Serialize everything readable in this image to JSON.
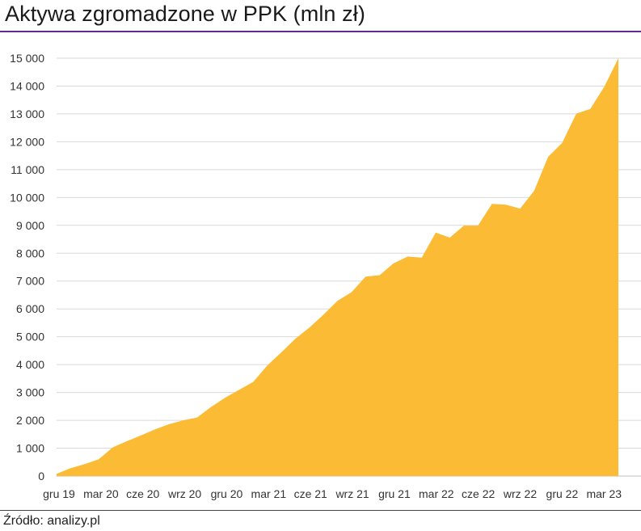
{
  "header": {
    "title": "Aktywa zgromadzone w PPK (mln zł)"
  },
  "footer": {
    "source": "Źródło: analizy.pl"
  },
  "colors": {
    "fill": "#fbbb35",
    "accent_rule": "#5b2d8e",
    "grid": "#d9d9d9"
  },
  "chart_data": {
    "type": "area",
    "title": "Aktywa zgromadzone w PPK (mln zł)",
    "xlabel": "",
    "ylabel": "",
    "ylim": [
      0,
      15000
    ],
    "yticks": [
      0,
      1000,
      2000,
      3000,
      4000,
      5000,
      6000,
      7000,
      8000,
      9000,
      10000,
      11000,
      12000,
      13000,
      14000,
      15000
    ],
    "ytick_labels": [
      "0",
      "1 000",
      "2 000",
      "3 000",
      "4 000",
      "5 000",
      "6 000",
      "7 000",
      "8 000",
      "9 000",
      "10 000",
      "11 000",
      "12 000",
      "13 000",
      "14 000",
      "15 000"
    ],
    "xtick_labels": [
      "gru 19",
      "mar 20",
      "cze 20",
      "wrz 20",
      "gru 20",
      "mar 21",
      "cze 21",
      "wrz 21",
      "gru 21",
      "mar 22",
      "cze 22",
      "wrz 22",
      "gru 22",
      "mar 23"
    ],
    "grid": true,
    "legend": "none",
    "series": [
      {
        "values": [
          80,
          280,
          430,
          600,
          1030,
          1250,
          1460,
          1670,
          1860,
          2000,
          2100,
          2480,
          2810,
          3100,
          3380,
          3970,
          4440,
          4930,
          5330,
          5790,
          6290,
          6600,
          7160,
          7210,
          7640,
          7880,
          7840,
          8740,
          8560,
          8990,
          8990,
          9770,
          9740,
          9600,
          10240,
          11460,
          11960,
          13010,
          13180,
          13980,
          15000
        ]
      }
    ]
  }
}
